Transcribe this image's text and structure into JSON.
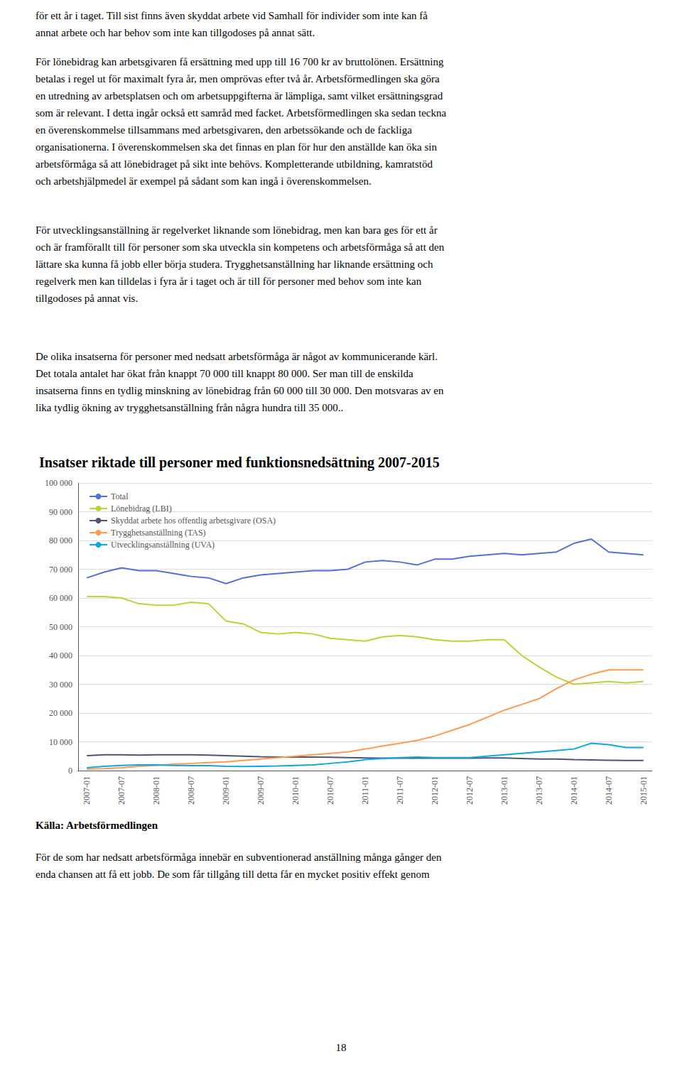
{
  "chart_data": {
    "type": "line",
    "title": "Insatser riktade till personer med funktionsnedsättning 2007-2015",
    "annotations": [
      "för ett år i taget. Till sist finns även skyddat arbete vid Samhall för individer som inte kan få\nannat arbete och har behov som inte kan tillgodoses på annat sätt.",
      "För lönebidrag kan arbetsgivaren få ersättning med upp till 16 700 kr av bruttolönen. Ersättning\nbetalas i regel ut för maximalt fyra år, men omprövas efter två år. Arbetsförmedlingen ska göra\nen utredning av arbetsplatsen och om arbetsuppgifterna är lämpliga, samt vilket ersättningsgrad\nsom är relevant. I detta ingår också ett samråd med facket. Arbetsförmedlingen ska sedan teckna\nen överenskommelse tillsammans med arbetsgivaren, den arbetssökande och de fackliga\norganisationerna. I överenskommelsen ska det finnas en plan för hur den anställde kan öka sin\narbetsförmåga så att lönebidraget på sikt inte behövs. Kompletterande utbildning, kamratstöd\noch arbetshjälpmedel är exempel på sådant som kan ingå i överenskommelsen.",
      "För utvecklingsanställning är regelverket liknande som lönebidrag, men kan bara ges för ett år\noch är framförallt till för personer som ska utveckla sin kompetens och arbetsförmåga så att den\nlättare ska kunna få jobb eller börja studera. Trygghetsanställning har liknande ersättning och\nregelverk men kan tilldelas i fyra år i taget och är till för personer med behov som inte kan\ntillgodoses på annat vis.",
      "De olika insatserna för personer med nedsatt arbetsförmåga är något av kommunicerande kärl.\nDet totala antalet har ökat från knappt 70 000 till knappt 80 000. Ser man till de enskilda\ninsatserna finns en tydlig minskning av lönebidrag från 60 000 till 30 000. Den motsvaras av en\nlika tydlig ökning av trygghetsanställning från några hundra till 35 000..",
      "Källa: Arbetsförmedlingen",
      "För de som har nedsatt arbetsförmåga innebär en subventionerad anställning många gånger den\nenda chansen att få ett jobb. De som får tillgång till detta får en mycket positiv effekt genom",
      "18"
    ],
    "categories": [
      "2007-01",
      null,
      "2007-07",
      null,
      "2008-01",
      null,
      "2008-07",
      null,
      "2009-01",
      null,
      "2009-07",
      null,
      "2010-01",
      null,
      "2010-07",
      null,
      "2011-01",
      null,
      "2011-07",
      null,
      "2012-01",
      null,
      "2012-07",
      null,
      "2013-01",
      null,
      "2013-07",
      null,
      "2014-01",
      null,
      "2014-07",
      null,
      "2015-01"
    ],
    "series": [
      {
        "name": "Total",
        "values": [
          67000,
          69000,
          70500,
          69500,
          69500,
          68500,
          67500,
          67000,
          65000,
          67000,
          68000,
          68500,
          69000,
          69500,
          69500,
          70000,
          72500,
          73000,
          72500,
          71500,
          73500,
          73500,
          74500,
          75000,
          75500,
          75000,
          75500,
          76000,
          79000,
          80500,
          76000,
          75500,
          75000
        ]
      },
      {
        "name": "Lönebidrag (LBI)",
        "values": [
          60500,
          60500,
          60000,
          58000,
          57500,
          57500,
          58500,
          58000,
          52000,
          51000,
          48000,
          47500,
          48000,
          47500,
          46000,
          45500,
          45000,
          46500,
          47000,
          46500,
          45500,
          45000,
          45000,
          45500,
          45500,
          40000,
          36000,
          32500,
          30000,
          30500,
          31000,
          30500,
          31000
        ]
      },
      {
        "name": "Skyddat arbete hos offentlig arbetsgivare (OSA)",
        "values": [
          5200,
          5500,
          5500,
          5400,
          5500,
          5500,
          5500,
          5400,
          5200,
          5000,
          4800,
          4700,
          4700,
          4700,
          4600,
          4500,
          4400,
          4300,
          4300,
          4300,
          4300,
          4300,
          4300,
          4400,
          4400,
          4200,
          4000,
          4000,
          3800,
          3700,
          3600,
          3500,
          3500
        ]
      },
      {
        "name": "Trygghetsanställning (TAS)",
        "values": [
          500,
          700,
          1000,
          1500,
          1800,
          2200,
          2500,
          2800,
          3000,
          3500,
          4000,
          4500,
          5000,
          5500,
          6000,
          6500,
          7500,
          8500,
          9500,
          10500,
          12000,
          14000,
          16000,
          18500,
          21000,
          23000,
          25000,
          28500,
          31500,
          33500,
          35000,
          35000,
          35000
        ]
      },
      {
        "name": "Utvecklingsanställning (UVA)",
        "values": [
          1000,
          1500,
          1800,
          2000,
          2000,
          1800,
          1700,
          1700,
          1500,
          1400,
          1500,
          1600,
          1800,
          2000,
          2500,
          3000,
          3800,
          4200,
          4500,
          4700,
          4500,
          4500,
          4500,
          5000,
          5500,
          6000,
          6500,
          7000,
          7500,
          9500,
          9000,
          8000,
          8000
        ]
      }
    ],
    "ylim": [
      0,
      100000
    ],
    "yticks": [
      0,
      {
        "value": 10000,
        "label": "10 000"
      },
      {
        "value": 20000,
        "label": "20 000"
      },
      {
        "value": 30000,
        "label": "30 000"
      },
      {
        "value": 40000,
        "label": "40 000"
      },
      {
        "value": 50000,
        "label": "50 000"
      },
      {
        "value": 60000,
        "label": "60 000"
      },
      {
        "value": 70000,
        "label": "70 000"
      },
      {
        "value": 80000,
        "label": "80 000"
      },
      {
        "value": 90000,
        "label": "90 000"
      },
      {
        "value": 100000,
        "label": "100 000"
      }
    ],
    "grid": true,
    "legend": "upper left"
  }
}
